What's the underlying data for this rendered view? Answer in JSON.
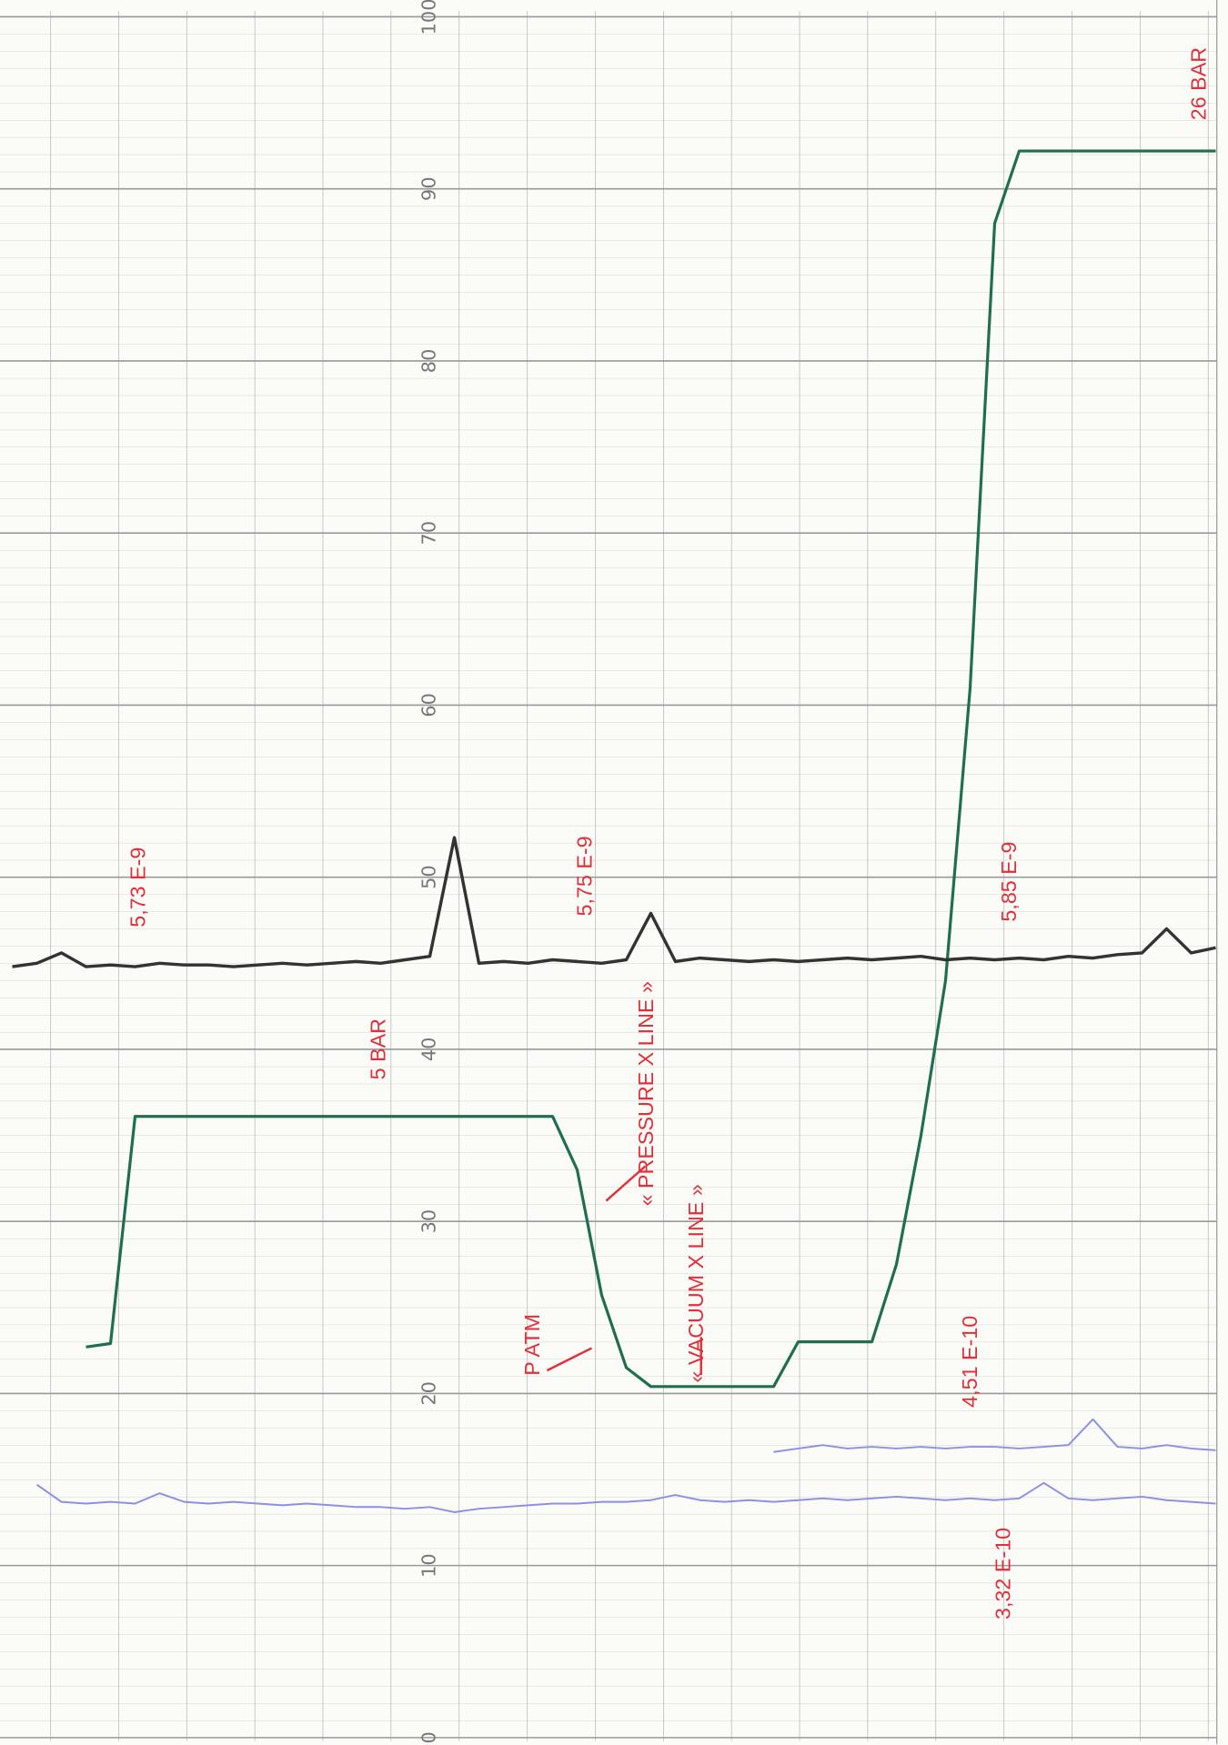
{
  "chart_data": {
    "type": "line",
    "categories": [
      null,
      null,
      null,
      null,
      null,
      null,
      null,
      null,
      null,
      null,
      null,
      null,
      null,
      null,
      null,
      null,
      null,
      null,
      null,
      null,
      null,
      null,
      null,
      null,
      null,
      null,
      null,
      null,
      null,
      null,
      null,
      null,
      null,
      null,
      null,
      null,
      null,
      null,
      null,
      null,
      null,
      null,
      null,
      null,
      null,
      null,
      null,
      null,
      null,
      null
    ],
    "ylim": [
      0,
      100
    ],
    "yticks": [
      0,
      10,
      20,
      30,
      40,
      50,
      60,
      70,
      80,
      90,
      100
    ],
    "grid": true,
    "series": [
      {
        "color": "#1f6e4e",
        "values": [
          null,
          null,
          null,
          22.7,
          22.9,
          36.1,
          36.1,
          36.1,
          36.1,
          36.1,
          36.1,
          36.1,
          36.1,
          36.1,
          36.1,
          36.1,
          36.1,
          36.1,
          36.1,
          36.1,
          36.1,
          36.1,
          36.1,
          33.0,
          25.7,
          21.5,
          20.4,
          20.4,
          20.4,
          20.4,
          20.4,
          20.4,
          23.0,
          23.0,
          23.0,
          23.0,
          27.5,
          35.0,
          44.0,
          61.0,
          88.0,
          92.2,
          92.2,
          92.2,
          92.2,
          92.2,
          92.2,
          92.2,
          92.2,
          92.2
        ]
      },
      {
        "color": "#333333",
        "values": [
          44.8,
          45.0,
          45.6,
          44.8,
          44.9,
          44.8,
          45.0,
          44.9,
          44.9,
          44.8,
          44.9,
          45.0,
          44.9,
          45.0,
          45.1,
          45.0,
          45.2,
          45.4,
          52.3,
          45.0,
          45.1,
          45.0,
          45.2,
          45.1,
          45.0,
          45.2,
          47.9,
          45.1,
          45.3,
          45.2,
          45.1,
          45.2,
          45.1,
          45.2,
          45.3,
          45.2,
          45.3,
          45.4,
          45.2,
          45.3,
          45.2,
          45.3,
          45.2,
          45.4,
          45.3,
          45.5,
          45.6,
          47.0,
          45.6,
          45.9
        ]
      },
      {
        "color": "#8c90e6",
        "values": [
          null,
          14.7,
          13.7,
          13.6,
          13.7,
          13.6,
          14.2,
          13.7,
          13.6,
          13.7,
          13.6,
          13.5,
          13.6,
          13.5,
          13.4,
          13.4,
          13.3,
          13.4,
          13.1,
          13.3,
          13.4,
          13.5,
          13.6,
          13.6,
          13.7,
          13.7,
          13.8,
          14.1,
          13.8,
          13.7,
          13.8,
          13.7,
          13.8,
          13.9,
          13.8,
          13.9,
          14.0,
          13.9,
          13.8,
          13.9,
          13.8,
          13.9,
          14.8,
          13.9,
          13.8,
          13.9,
          14.0,
          13.8,
          13.7,
          13.6
        ]
      },
      {
        "color": "#8c90e6",
        "values": [
          null,
          null,
          null,
          null,
          null,
          null,
          null,
          null,
          null,
          null,
          null,
          null,
          null,
          null,
          null,
          null,
          null,
          null,
          null,
          null,
          null,
          null,
          null,
          null,
          null,
          null,
          null,
          null,
          null,
          null,
          null,
          16.6,
          16.8,
          17.0,
          16.8,
          16.9,
          16.8,
          16.9,
          16.8,
          16.9,
          16.9,
          16.8,
          16.9,
          17.0,
          18.5,
          16.9,
          16.8,
          17.0,
          16.8,
          16.7
        ]
      }
    ],
    "annotations": [
      "5,73 E-9",
      "5 BAR",
      "5,75 E-9",
      "5,85 E-9",
      "26 BAR",
      "« PRESSURE X LINE »",
      "« VACUUM X LINE »",
      "P ATM",
      "4,51 E-10",
      "3,32 E-10"
    ],
    "annotation_color": "#e2303a"
  }
}
